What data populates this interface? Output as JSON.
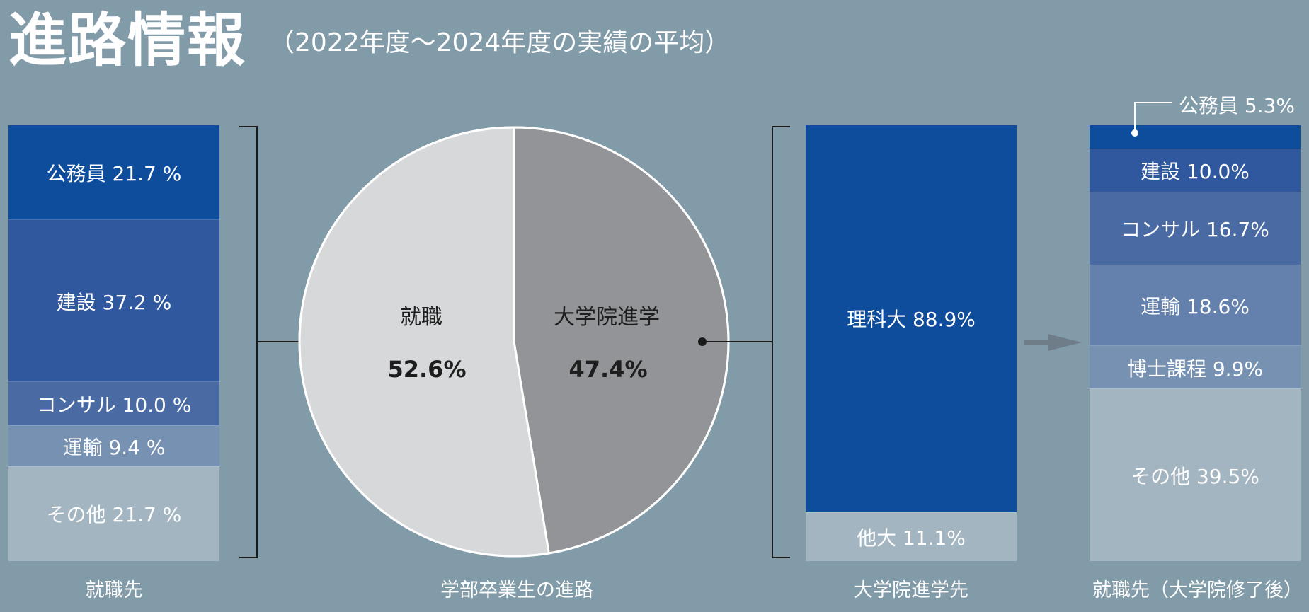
{
  "header": {
    "title": "進路情報",
    "subtitle": "（2022年度～2024年度の実績の平均）"
  },
  "colors": {
    "background": "#819ba9",
    "navy": "#0e4c9c",
    "blue_mid": "#30589e",
    "blue_soft": "#4a6aa4",
    "blue_light": "#6480ad",
    "blue_pale": "#7691b2",
    "gray_light": "#a3b5c1",
    "pie_employment": "#d6d8da",
    "pie_grad": "#939497"
  },
  "chart_data": [
    {
      "type": "bar",
      "stacked": true,
      "xlabel": "就職先",
      "series": [
        {
          "name": "公務員",
          "value": 21.7,
          "label": "公務員 21.7 %"
        },
        {
          "name": "建設",
          "value": 37.2,
          "label": "建設 37.2 %"
        },
        {
          "name": "コンサル",
          "value": 10.0,
          "label": "コンサル 10.0 %"
        },
        {
          "name": "運輸",
          "value": 9.4,
          "label": "運輸 9.4 %"
        },
        {
          "name": "その他",
          "value": 21.7,
          "label": "その他 21.7 %"
        }
      ]
    },
    {
      "type": "pie",
      "xlabel": "学部卒業生の進路",
      "slices": [
        {
          "name": "就職",
          "value": 52.6,
          "label": "52.6%"
        },
        {
          "name": "大学院進学",
          "value": 47.4,
          "label": "47.4%"
        }
      ]
    },
    {
      "type": "bar",
      "stacked": true,
      "xlabel": "大学院進学先",
      "series": [
        {
          "name": "理科大",
          "value": 88.9,
          "label": "理科大 88.9%"
        },
        {
          "name": "他大",
          "value": 11.1,
          "label": "他大 11.1%"
        }
      ]
    },
    {
      "type": "bar",
      "stacked": true,
      "xlabel": "就職先（大学院修了後）",
      "series": [
        {
          "name": "公務員",
          "value": 5.3,
          "label": "公務員 5.3%"
        },
        {
          "name": "建設",
          "value": 10.0,
          "label": "建設 10.0%"
        },
        {
          "name": "コンサル",
          "value": 16.7,
          "label": "コンサル 16.7%"
        },
        {
          "name": "運輸",
          "value": 18.6,
          "label": "運輸 18.6%"
        },
        {
          "name": "博士課程",
          "value": 9.9,
          "label": "博士課程 9.9%"
        },
        {
          "name": "その他",
          "value": 39.5,
          "label": "その他 39.5%"
        }
      ]
    }
  ]
}
